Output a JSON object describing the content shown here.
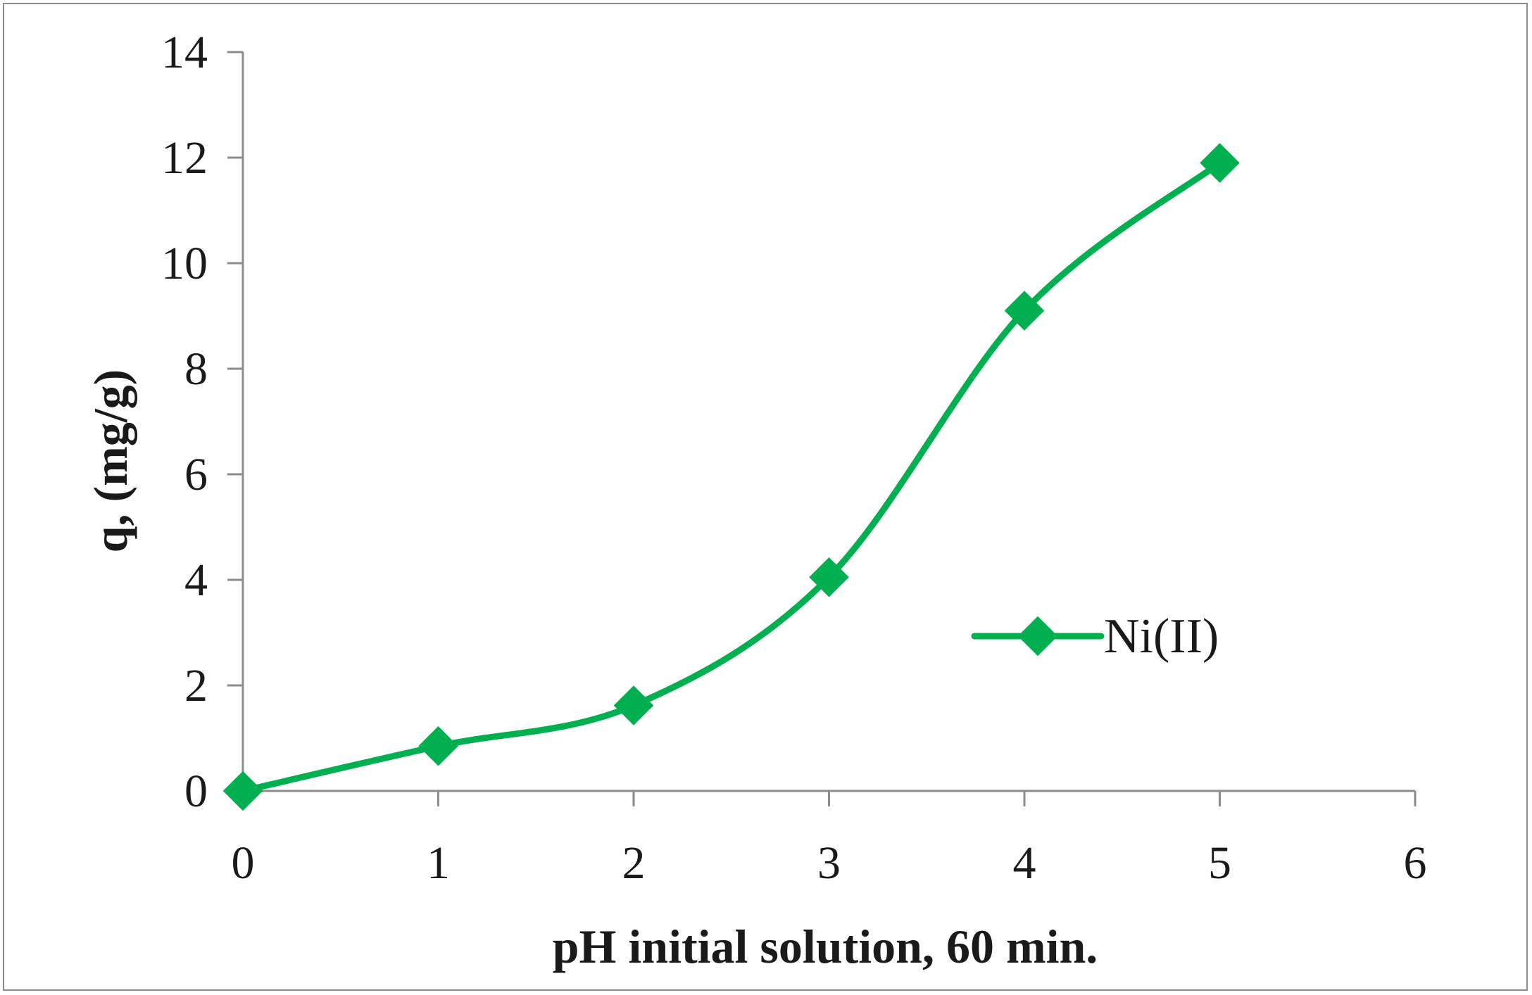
{
  "chart_data": {
    "type": "line",
    "xlabel": "pH initial solution, 60 min.",
    "ylabel": "q, (mg/g)",
    "xlim": [
      0,
      6
    ],
    "ylim": [
      0,
      14
    ],
    "x_ticks": [
      "0",
      "1",
      "2",
      "3",
      "4",
      "5",
      "6"
    ],
    "y_ticks": [
      "0",
      "2",
      "4",
      "6",
      "8",
      "10",
      "12",
      "14"
    ],
    "grid": false,
    "legend_position": "center-right",
    "smoothed": true,
    "series": [
      {
        "name": "Ni(II)",
        "color": "#00b050",
        "marker": "diamond",
        "x": [
          0,
          1,
          2,
          3,
          4,
          5
        ],
        "y": [
          0,
          0.85,
          1.62,
          4.05,
          9.1,
          11.9
        ]
      }
    ]
  }
}
